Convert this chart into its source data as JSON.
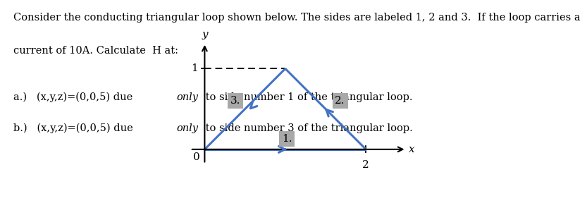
{
  "line1": "Consider the conducting triangular loop shown below. The sides are labeled 1, 2 and 3.  If the loop carries a",
  "line2": "current of 10A. Calculate  H at:",
  "part_a_pre": "a.)   (x,y,z)=(0,0,5) due ",
  "part_a_only": "only",
  "part_a_post": " to side number 1 of the triangular loop.",
  "part_b_pre": "b.)   (x,y,z)=(0,0,5) due ",
  "part_b_only": "only",
  "part_b_post": " to side number 3 of the triangular loop.",
  "triangle_color": "#4472C4",
  "triangle_linewidth": 2.2,
  "dashed_color": "#000000",
  "label_box_color": "#a8a8a8",
  "xlabel": "x",
  "ylabel": "y",
  "fig_bg": "#ffffff",
  "text_color": "#000000",
  "font_size_text": 10.5,
  "font_size_diagram": 11
}
